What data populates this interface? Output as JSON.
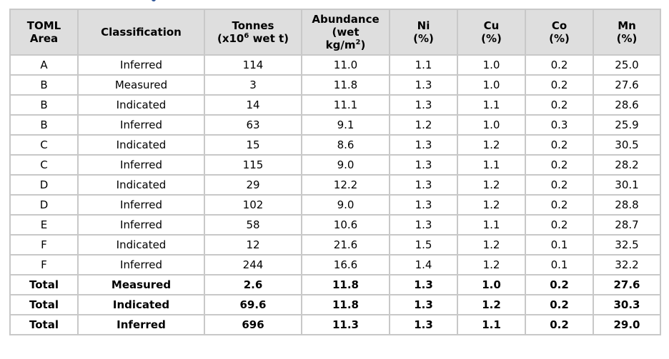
{
  "table": {
    "headers": [
      {
        "key": "area",
        "line1": "TOML",
        "line2": "Area",
        "line3": ""
      },
      {
        "key": "classification",
        "line1": "Classification",
        "line2": "",
        "line3": ""
      },
      {
        "key": "tonnes",
        "line1": "Tonnes",
        "line2_pre": "(x10",
        "line2_sup": "6",
        "line2_post": " wet t)",
        "line3": ""
      },
      {
        "key": "abundance",
        "line1": "Abundance",
        "line2": "(wet",
        "line3_pre": "kg/m",
        "line3_sup": "2",
        "line3_post": ")"
      },
      {
        "key": "ni",
        "line1": "Ni",
        "line2": "(%)",
        "line3": ""
      },
      {
        "key": "cu",
        "line1": "Cu",
        "line2": "(%)",
        "line3": ""
      },
      {
        "key": "co",
        "line1": "Co",
        "line2": "(%)",
        "line3": ""
      },
      {
        "key": "mn",
        "line1": "Mn",
        "line2": "(%)",
        "line3": ""
      }
    ],
    "rows": [
      {
        "area": "A",
        "classification": "Inferred",
        "tonnes": "114",
        "abundance": "11.0",
        "ni": "1.1",
        "cu": "1.0",
        "co": "0.2",
        "mn": "25.0"
      },
      {
        "area": "B",
        "classification": "Measured",
        "tonnes": "3",
        "abundance": "11.8",
        "ni": "1.3",
        "cu": "1.0",
        "co": "0.2",
        "mn": "27.6"
      },
      {
        "area": "B",
        "classification": "Indicated",
        "tonnes": "14",
        "abundance": "11.1",
        "ni": "1.3",
        "cu": "1.1",
        "co": "0.2",
        "mn": "28.6"
      },
      {
        "area": "B",
        "classification": "Inferred",
        "tonnes": "63",
        "abundance": "9.1",
        "ni": "1.2",
        "cu": "1.0",
        "co": "0.3",
        "mn": "25.9"
      },
      {
        "area": "C",
        "classification": "Indicated",
        "tonnes": "15",
        "abundance": "8.6",
        "ni": "1.3",
        "cu": "1.2",
        "co": "0.2",
        "mn": "30.5"
      },
      {
        "area": "C",
        "classification": "Inferred",
        "tonnes": "115",
        "abundance": "9.0",
        "ni": "1.3",
        "cu": "1.1",
        "co": "0.2",
        "mn": "28.2"
      },
      {
        "area": "D",
        "classification": "Indicated",
        "tonnes": "29",
        "abundance": "12.2",
        "ni": "1.3",
        "cu": "1.2",
        "co": "0.2",
        "mn": "30.1"
      },
      {
        "area": "D",
        "classification": "Inferred",
        "tonnes": "102",
        "abundance": "9.0",
        "ni": "1.3",
        "cu": "1.2",
        "co": "0.2",
        "mn": "28.8"
      },
      {
        "area": "E",
        "classification": "Inferred",
        "tonnes": "58",
        "abundance": "10.6",
        "ni": "1.3",
        "cu": "1.1",
        "co": "0.2",
        "mn": "28.7"
      },
      {
        "area": "F",
        "classification": "Indicated",
        "tonnes": "12",
        "abundance": "21.6",
        "ni": "1.5",
        "cu": "1.2",
        "co": "0.1",
        "mn": "32.5"
      },
      {
        "area": "F",
        "classification": "Inferred",
        "tonnes": "244",
        "abundance": "16.6",
        "ni": "1.4",
        "cu": "1.2",
        "co": "0.1",
        "mn": "32.2"
      }
    ],
    "totals": [
      {
        "area": "Total",
        "classification": "Measured",
        "tonnes": "2.6",
        "abundance": "11.8",
        "ni": "1.3",
        "cu": "1.0",
        "co": "0.2",
        "mn": "27.6"
      },
      {
        "area": "Total",
        "classification": "Indicated",
        "tonnes": "69.6",
        "abundance": "11.8",
        "ni": "1.3",
        "cu": "1.2",
        "co": "0.2",
        "mn": "30.3"
      },
      {
        "area": "Total",
        "classification": "Inferred",
        "tonnes": "696",
        "abundance": "11.3",
        "ni": "1.3",
        "cu": "1.1",
        "co": "0.2",
        "mn": "29.0"
      }
    ]
  },
  "colors": {
    "header_background": "#dedede",
    "border": "#c8c8c8",
    "text": "#000000"
  }
}
